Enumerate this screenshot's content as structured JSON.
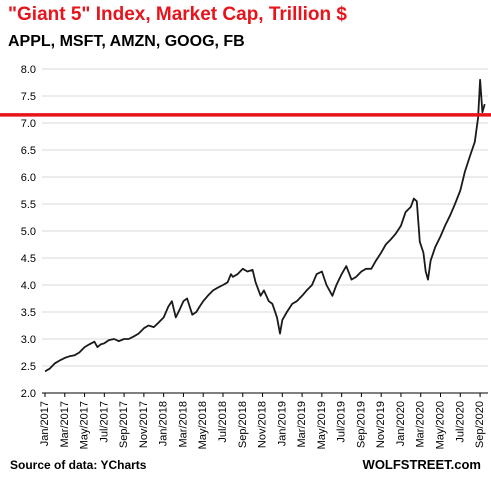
{
  "header": {
    "title": "\"Giant 5\" Index, Market Cap, Trillion $",
    "subtitle": "APPL, MSFT, AMZN, GOOG, FB"
  },
  "footer": {
    "source": "Source of data: YCharts",
    "brand": "WOLFSTREET.com"
  },
  "colors": {
    "line": "#1a1a1a",
    "reference_line": "#e8141b",
    "title": "#e8141b",
    "grid": "#d9d9d9"
  },
  "chart_data": {
    "type": "line",
    "title": "\"Giant 5\" Index, Market Cap, Trillion $",
    "subtitle": "APPL, MSFT, AMZN, GOOG, FB",
    "xlabel": "",
    "ylabel": "",
    "ylim": [
      2.0,
      8.0
    ],
    "yticks": [
      "2.0",
      "2.5",
      "3.0",
      "3.5",
      "4.0",
      "4.5",
      "5.0",
      "5.5",
      "6.0",
      "6.5",
      "7.0",
      "7.5",
      "8.0"
    ],
    "xticks": [
      "Jan/2017",
      "Mar/2017",
      "May/2017",
      "Jul/2017",
      "Sep/2017",
      "Nov/2017",
      "Jan/2018",
      "Mar/2018",
      "May/2018",
      "Jul/2018",
      "Sep/2018",
      "Nov/2018",
      "Jan/2019",
      "Mar/2019",
      "May/2019",
      "Jul/2019",
      "Sep/2019",
      "Nov/2019",
      "Jan/2020",
      "Mar/2020",
      "May/2020",
      "Jul/2020",
      "Sep/2020"
    ],
    "grid": "horizontal",
    "reference_line": {
      "y": 7.15
    },
    "series": [
      {
        "x": [
          "2017-01-01",
          "2017-01-15",
          "2017-02-01",
          "2017-02-15",
          "2017-03-01",
          "2017-03-15",
          "2017-04-01",
          "2017-04-15",
          "2017-05-01",
          "2017-05-15",
          "2017-06-01",
          "2017-06-10",
          "2017-06-20",
          "2017-07-01",
          "2017-07-15",
          "2017-08-01",
          "2017-08-15",
          "2017-09-01",
          "2017-09-15",
          "2017-10-01",
          "2017-10-15",
          "2017-11-01",
          "2017-11-15",
          "2017-12-01",
          "2017-12-15",
          "2018-01-01",
          "2018-01-15",
          "2018-01-26",
          "2018-02-08",
          "2018-02-20",
          "2018-03-01",
          "2018-03-12",
          "2018-03-28",
          "2018-04-10",
          "2018-04-20",
          "2018-05-01",
          "2018-05-15",
          "2018-06-01",
          "2018-06-15",
          "2018-07-01",
          "2018-07-15",
          "2018-07-25",
          "2018-08-01",
          "2018-08-15",
          "2018-09-01",
          "2018-09-15",
          "2018-10-01",
          "2018-10-10",
          "2018-10-25",
          "2018-11-05",
          "2018-11-20",
          "2018-12-01",
          "2018-12-15",
          "2018-12-24",
          "2019-01-01",
          "2019-01-15",
          "2019-02-01",
          "2019-02-15",
          "2019-03-01",
          "2019-03-15",
          "2019-04-01",
          "2019-04-15",
          "2019-05-01",
          "2019-05-15",
          "2019-06-03",
          "2019-06-15",
          "2019-07-01",
          "2019-07-15",
          "2019-08-01",
          "2019-08-15",
          "2019-09-01",
          "2019-09-15",
          "2019-10-01",
          "2019-10-15",
          "2019-11-01",
          "2019-11-15",
          "2019-12-01",
          "2019-12-15",
          "2020-01-01",
          "2020-01-15",
          "2020-02-01",
          "2020-02-10",
          "2020-02-19",
          "2020-02-28",
          "2020-03-09",
          "2020-03-16",
          "2020-03-23",
          "2020-04-01",
          "2020-04-15",
          "2020-05-01",
          "2020-05-15",
          "2020-06-01",
          "2020-06-15",
          "2020-07-01",
          "2020-07-15",
          "2020-08-01",
          "2020-08-15",
          "2020-08-25",
          "2020-09-01",
          "2020-09-08",
          "2020-09-15"
        ],
        "values": [
          2.4,
          2.45,
          2.55,
          2.6,
          2.65,
          2.68,
          2.7,
          2.75,
          2.85,
          2.9,
          2.95,
          2.85,
          2.9,
          2.92,
          2.98,
          3.0,
          2.96,
          3.0,
          3.0,
          3.05,
          3.1,
          3.2,
          3.25,
          3.22,
          3.3,
          3.4,
          3.6,
          3.7,
          3.4,
          3.55,
          3.7,
          3.75,
          3.45,
          3.5,
          3.6,
          3.7,
          3.8,
          3.9,
          3.95,
          4.0,
          4.05,
          4.2,
          4.15,
          4.2,
          4.3,
          4.25,
          4.28,
          4.05,
          3.8,
          3.9,
          3.7,
          3.65,
          3.4,
          3.1,
          3.35,
          3.5,
          3.65,
          3.7,
          3.8,
          3.9,
          4.0,
          4.2,
          4.25,
          4.0,
          3.8,
          4.0,
          4.2,
          4.35,
          4.1,
          4.15,
          4.25,
          4.3,
          4.3,
          4.45,
          4.6,
          4.75,
          4.85,
          4.95,
          5.1,
          5.35,
          5.45,
          5.6,
          5.55,
          4.8,
          4.6,
          4.25,
          4.1,
          4.45,
          4.7,
          4.9,
          5.1,
          5.3,
          5.5,
          5.75,
          6.1,
          6.4,
          6.65,
          7.1,
          7.8,
          7.2,
          7.35
        ]
      }
    ]
  }
}
